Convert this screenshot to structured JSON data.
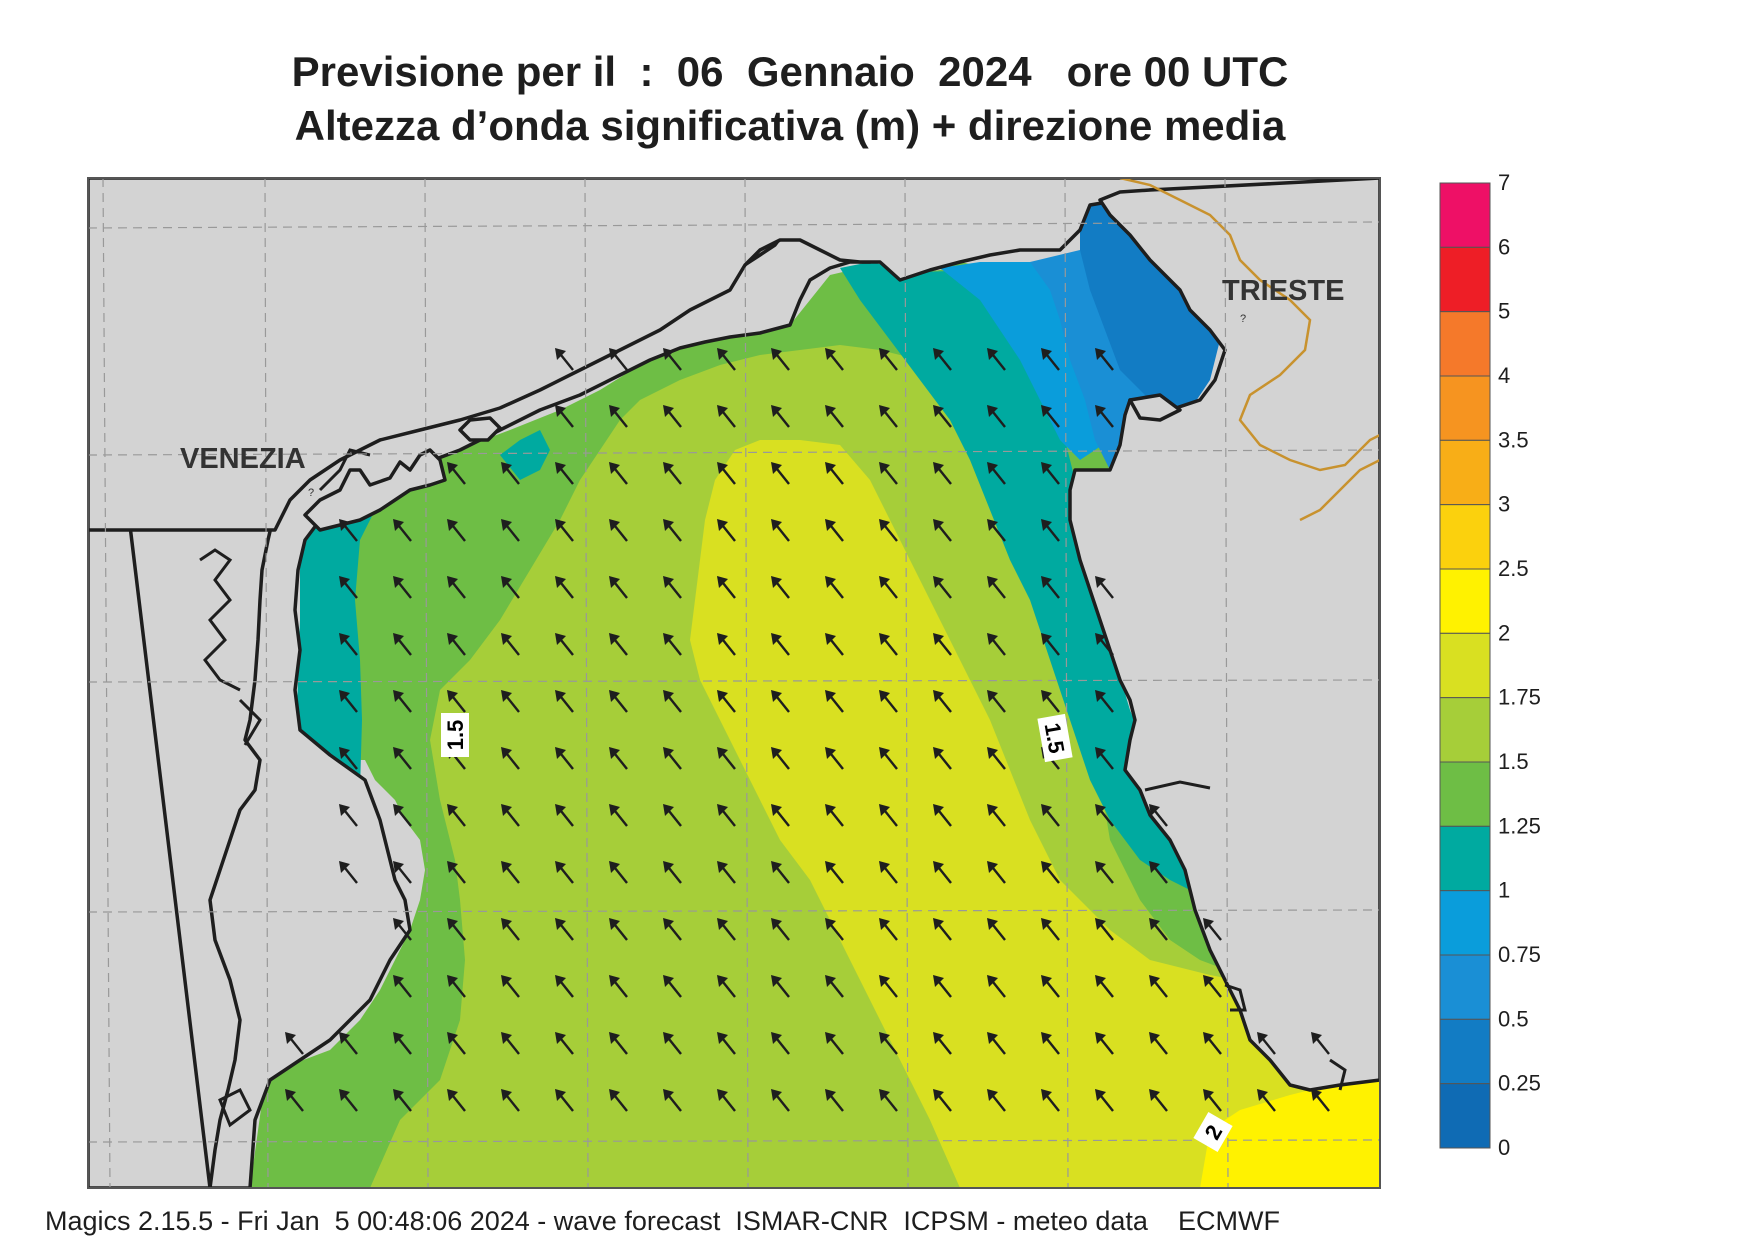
{
  "header": {
    "title_line1": "Previsione per il  :  06  Gennaio  2024   ore 00 UTC",
    "title_line2": "Altezza d’onda significativa (m) + direzione media"
  },
  "map": {
    "place_labels": {
      "venezia": "VENEZIA",
      "trieste": "TRIESTE"
    },
    "contour_labels": {
      "west": "1.5",
      "east": "1.5",
      "south": "2"
    },
    "arrow_direction": "north-west",
    "colors": {
      "land": "#d3d3d3",
      "coast": "#1e1e1e",
      "border": "#c8922e",
      "grid": "#999999"
    }
  },
  "legend": {
    "labels": [
      "7",
      "6",
      "5",
      "4",
      "3.5",
      "3",
      "2.5",
      "2",
      "1.75",
      "1.5",
      "1.25",
      "1",
      "0.75",
      "0.5",
      "0.25",
      "0"
    ],
    "colors": [
      "#ee1066",
      "#ee1e26",
      "#f5792a",
      "#f69420",
      "#f8ae17",
      "#fbd10d",
      "#fff200",
      "#d9e021",
      "#a6ce39",
      "#6ebe45",
      "#00aaa0",
      "#0a9ddb",
      "#1a8fd5",
      "#127cc4",
      "#0f6bb4"
    ]
  },
  "footer": {
    "text": "Magics 2.15.5 - Fri Jan  5 00:48:06 2024 - wave forecast  ISMAR-CNR  ICPSM - meteo data    ECMWF"
  }
}
